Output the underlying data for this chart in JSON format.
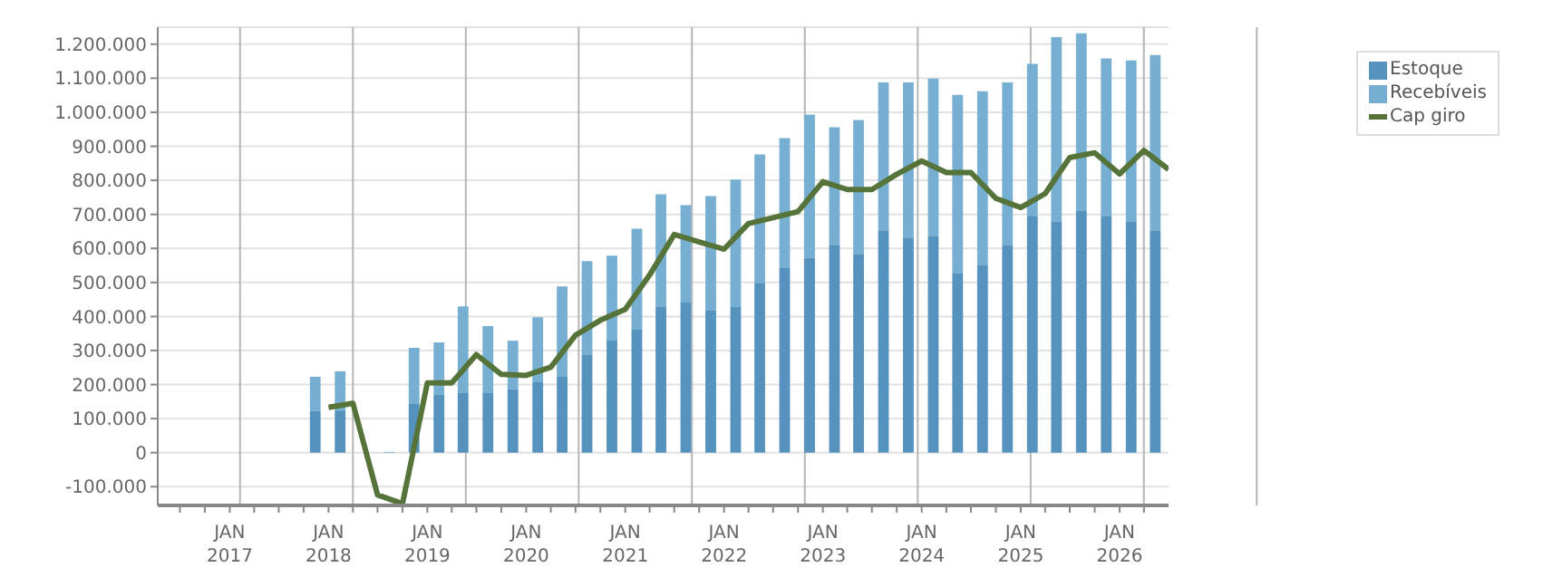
{
  "chart_data": {
    "type": "bar",
    "stacked": true,
    "x": [
      "2017-11-15",
      "2018-02-15",
      "2018-05-15",
      "2018-08-15",
      "2018-11-15",
      "2019-02-15",
      "2019-05-15",
      "2019-08-15",
      "2019-11-15",
      "2020-02-15",
      "2020-05-15",
      "2020-08-15",
      "2020-11-15",
      "2021-02-15",
      "2021-05-15",
      "2021-08-15",
      "2021-11-15",
      "2022-02-15",
      "2022-05-15",
      "2022-08-15",
      "2022-11-15",
      "2023-02-15",
      "2023-05-15",
      "2023-08-15",
      "2023-11-15",
      "2024-02-15",
      "2024-05-15",
      "2024-08-15",
      "2024-11-15",
      "2025-02-15",
      "2025-05-15",
      "2025-08-15",
      "2025-11-15",
      "2026-02-15",
      "2026-05-15"
    ],
    "series": [
      {
        "name": "Estoque",
        "color": "#5593be",
        "values": [
          122000,
          124000,
          0,
          0,
          143000,
          170000,
          175000,
          175000,
          186000,
          207000,
          223000,
          287000,
          329000,
          361000,
          430000,
          441000,
          419000,
          430000,
          499000,
          542000,
          573000,
          611000,
          584000,
          653000,
          632000,
          637000,
          526000,
          552000,
          611000,
          696000,
          680000,
          712000,
          696000,
          680000,
          653000
        ]
      },
      {
        "name": "Recebíveis",
        "color": "#77afd2",
        "values": [
          101000,
          115000,
          null,
          2000,
          165000,
          154000,
          255000,
          197000,
          143000,
          191000,
          265000,
          276000,
          250000,
          297000,
          329000,
          286000,
          335000,
          372000,
          377000,
          382000,
          420000,
          345000,
          393000,
          435000,
          456000,
          462000,
          525000,
          510000,
          477000,
          446000,
          541000,
          520000,
          462000,
          472000,
          515000
        ]
      },
      {
        "name": "Cap giro",
        "type": "line",
        "color": "#56733a",
        "x": [
          "2018-01-01",
          "2018-04-01",
          "2018-07-01",
          "2018-10-01",
          "2019-01-01",
          "2019-04-01",
          "2019-07-01",
          "2019-10-01",
          "2020-01-01",
          "2020-04-01",
          "2020-07-01",
          "2020-10-01",
          "2021-01-01",
          "2021-04-01",
          "2021-07-01",
          "2021-10-01",
          "2022-01-01",
          "2022-04-01",
          "2022-07-01",
          "2022-10-01",
          "2023-01-01",
          "2023-04-01",
          "2023-07-01",
          "2023-10-01",
          "2024-01-01",
          "2024-04-01",
          "2024-07-01",
          "2024-10-01",
          "2025-01-01",
          "2025-04-01",
          "2025-07-01",
          "2025-10-01",
          "2026-01-01",
          "2026-04-01",
          "2026-07-01"
        ],
        "values": [
          133000,
          145000,
          -124000,
          -150000,
          205000,
          205000,
          288000,
          230000,
          227000,
          251000,
          345000,
          389000,
          421000,
          522000,
          641000,
          619000,
          598000,
          673000,
          690000,
          708000,
          796000,
          773000,
          773000,
          818000,
          857000,
          823000,
          823000,
          747000,
          720000,
          761000,
          867000,
          881000,
          819000,
          888000,
          832000
        ]
      }
    ],
    "xlim": [
      "2016-04-10",
      "2026-07-01"
    ],
    "xticks": [
      {
        "value": "2016-07-01",
        "label": null
      },
      {
        "value": "2016-10-01",
        "label": null
      },
      {
        "value": "2017-01-01",
        "label": "JAN 2017"
      },
      {
        "value": "2017-04-01",
        "label": null
      },
      {
        "value": "2017-07-01",
        "label": null
      },
      {
        "value": "2017-10-01",
        "label": null
      },
      {
        "value": "2018-01-01",
        "label": "JAN 2018"
      },
      {
        "value": "2018-04-01",
        "label": null
      },
      {
        "value": "2018-07-01",
        "label": null
      },
      {
        "value": "2018-10-01",
        "label": null
      },
      {
        "value": "2019-01-01",
        "label": "JAN 2019"
      },
      {
        "value": "2019-04-01",
        "label": null
      },
      {
        "value": "2019-07-01",
        "label": null
      },
      {
        "value": "2019-10-01",
        "label": null
      },
      {
        "value": "2020-01-01",
        "label": "JAN 2020"
      },
      {
        "value": "2020-04-01",
        "label": null
      },
      {
        "value": "2020-07-01",
        "label": null
      },
      {
        "value": "2020-10-01",
        "label": null
      },
      {
        "value": "2021-01-01",
        "label": "JAN 2021"
      },
      {
        "value": "2021-04-01",
        "label": null
      },
      {
        "value": "2021-07-01",
        "label": null
      },
      {
        "value": "2021-10-01",
        "label": null
      },
      {
        "value": "2022-01-01",
        "label": "JAN 2022"
      },
      {
        "value": "2022-04-01",
        "label": null
      },
      {
        "value": "2022-07-01",
        "label": null
      },
      {
        "value": "2022-10-01",
        "label": null
      },
      {
        "value": "2023-01-01",
        "label": "JAN 2023"
      },
      {
        "value": "2023-04-01",
        "label": null
      },
      {
        "value": "2023-07-01",
        "label": null
      },
      {
        "value": "2023-10-01",
        "label": null
      },
      {
        "value": "2024-01-01",
        "label": "JAN 2024"
      },
      {
        "value": "2024-04-01",
        "label": null
      },
      {
        "value": "2024-07-01",
        "label": null
      },
      {
        "value": "2024-10-01",
        "label": null
      },
      {
        "value": "2025-01-01",
        "label": "JAN 2025"
      },
      {
        "value": "2025-04-01",
        "label": null
      },
      {
        "value": "2025-07-01",
        "label": null
      },
      {
        "value": "2025-10-01",
        "label": null
      },
      {
        "value": "2026-01-01",
        "label": "JAN 2026"
      },
      {
        "value": "2026-04-01",
        "label": null
      }
    ],
    "ylim": [
      -155000,
      1250000
    ],
    "yticks": [
      {
        "value": -100000,
        "label": "-100.000"
      },
      0,
      {
        "value": 100000,
        "label": "100.000"
      },
      {
        "value": 200000,
        "label": "200.000"
      },
      {
        "value": 300000,
        "label": "300.000"
      },
      {
        "value": 400000,
        "label": "400.000"
      },
      {
        "value": 500000,
        "label": "500.000"
      },
      {
        "value": 600000,
        "label": "600.000"
      },
      {
        "value": 700000,
        "label": "700.000"
      },
      {
        "value": 800000,
        "label": "800.000"
      },
      {
        "value": 900000,
        "label": "900.000"
      },
      {
        "value": 1000000,
        "label": "1.000.000"
      },
      {
        "value": 1100000,
        "label": "1.100.000"
      },
      {
        "value": 1200000,
        "label": "1.200.000"
      }
    ],
    "grid": true,
    "legend": "top right"
  }
}
